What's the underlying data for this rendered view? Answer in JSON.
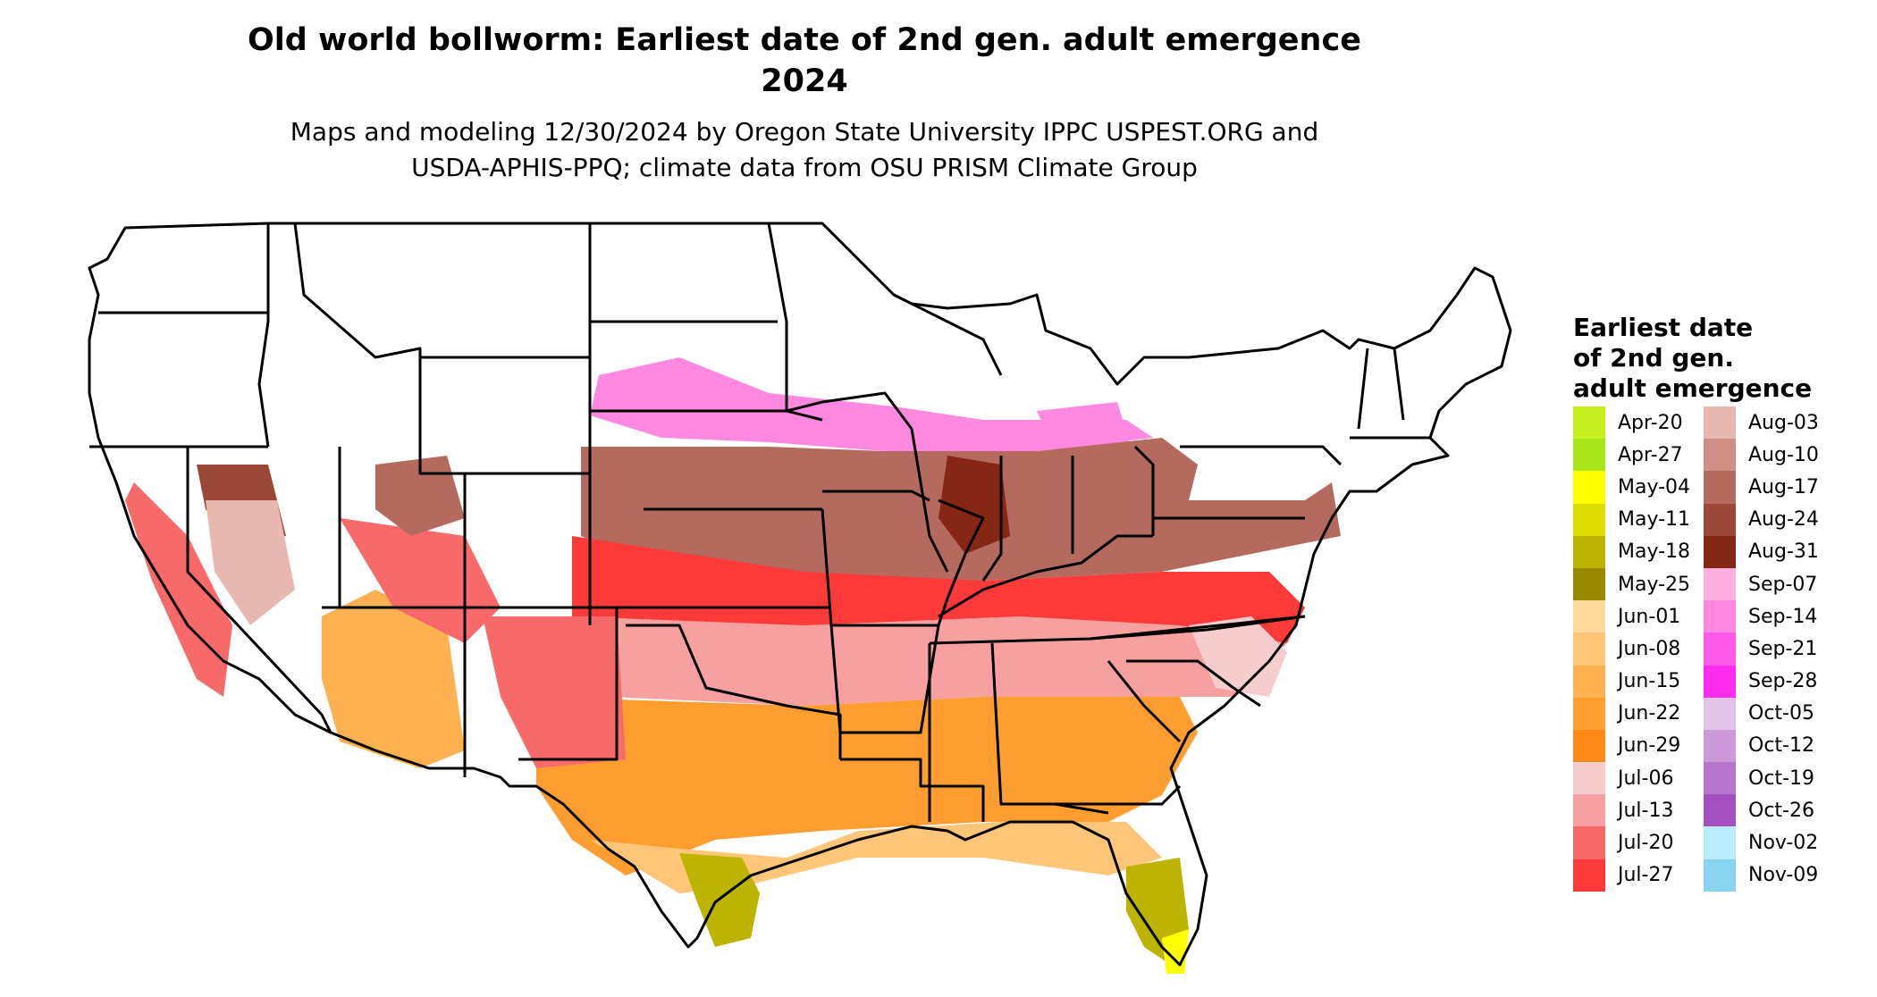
{
  "title": {
    "line1": "Old world bollworm: Earliest date of 2nd gen. adult emergence",
    "line2": "2024"
  },
  "subtitle": {
    "line1": "Maps and modeling 12/30/2024 by Oregon State University IPPC USPEST.ORG and",
    "line2": "USDA-APHIS-PPQ; climate data from OSU PRISM Climate Group"
  },
  "legend": {
    "title_lines": [
      "Earliest date",
      "of 2nd gen.",
      "adult emergence"
    ],
    "items": [
      {
        "label": "Apr-20",
        "color": "#c8f01e"
      },
      {
        "label": "Apr-27",
        "color": "#a8e61a"
      },
      {
        "label": "May-04",
        "color": "#ffff00"
      },
      {
        "label": "May-11",
        "color": "#dddd00"
      },
      {
        "label": "May-18",
        "color": "#bcb400"
      },
      {
        "label": "May-25",
        "color": "#9a8a00"
      },
      {
        "label": "Jun-01",
        "color": "#ffd99a"
      },
      {
        "label": "Jun-08",
        "color": "#ffc67a"
      },
      {
        "label": "Jun-15",
        "color": "#ffb050"
      },
      {
        "label": "Jun-22",
        "color": "#ff9e30"
      },
      {
        "label": "Jun-29",
        "color": "#ff8a18"
      },
      {
        "label": "Jul-06",
        "color": "#f6cccc"
      },
      {
        "label": "Jul-13",
        "color": "#f7a0a0"
      },
      {
        "label": "Jul-20",
        "color": "#f86a6a"
      },
      {
        "label": "Jul-27",
        "color": "#fd3a3a"
      },
      {
        "label": "Aug-03",
        "color": "#e8b8b0"
      },
      {
        "label": "Aug-10",
        "color": "#cf8f84"
      },
      {
        "label": "Aug-17",
        "color": "#b56a5e"
      },
      {
        "label": "Aug-24",
        "color": "#9c4838"
      },
      {
        "label": "Aug-31",
        "color": "#862614"
      },
      {
        "label": "Sep-07",
        "color": "#ffaee0"
      },
      {
        "label": "Sep-14",
        "color": "#ff88e0"
      },
      {
        "label": "Sep-21",
        "color": "#ff5ae8"
      },
      {
        "label": "Sep-28",
        "color": "#ff2cf0"
      },
      {
        "label": "Oct-05",
        "color": "#e0c4e8"
      },
      {
        "label": "Oct-12",
        "color": "#cc9ad8"
      },
      {
        "label": "Oct-19",
        "color": "#b774cc"
      },
      {
        "label": "Oct-26",
        "color": "#a550c0"
      },
      {
        "label": "Nov-02",
        "color": "#b8ecfc"
      },
      {
        "label": "Nov-09",
        "color": "#88d4f0"
      }
    ]
  }
}
